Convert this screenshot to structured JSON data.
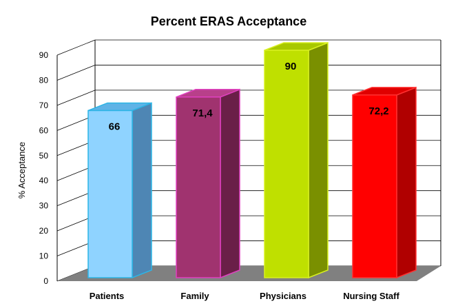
{
  "chart_data": {
    "type": "bar",
    "title": "Percent ERAS Acceptance",
    "ylabel": "% Acceptance",
    "xlabel": "",
    "categories": [
      "Patients",
      "Family",
      "Physicians",
      "Nursing Staff"
    ],
    "values": [
      66,
      71.4,
      90,
      72.2
    ],
    "data_labels": [
      "66",
      "71,4",
      "90",
      "72,2"
    ],
    "ylim": [
      0,
      90
    ],
    "yticks": [
      "0",
      "10",
      "20",
      "30",
      "40",
      "50",
      "60",
      "70",
      "80",
      "90"
    ],
    "grid": true,
    "legend": "none",
    "colors": {
      "bars": [
        {
          "front": "#8fd3ff",
          "side": "#4e86b4",
          "top": "#5fb3e6",
          "edge": "#2cb5e6"
        },
        {
          "front": "#a0336f",
          "side": "#6a1f48",
          "top": "#b8408a",
          "edge": "#e040c0"
        },
        {
          "front": "#bfe000",
          "side": "#7a9000",
          "top": "#a8c800",
          "edge": "#d8f020"
        },
        {
          "front": "#ff0000",
          "side": "#b00000",
          "top": "#e00000",
          "edge": "#ff3030"
        }
      ],
      "floor": "#808080",
      "gridline": "#000000"
    }
  }
}
